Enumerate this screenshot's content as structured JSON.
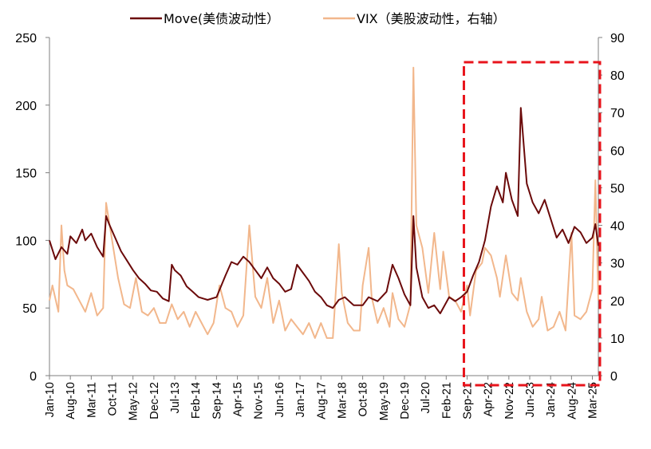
{
  "chart_data": {
    "type": "line",
    "legend_position": "top",
    "grid": false,
    "colors": {
      "move": "#6b0a0a",
      "vix": "#f2b78c",
      "highlight": "#e8141c"
    },
    "x_labels": [
      "Jan-10",
      "Aug-10",
      "Mar-11",
      "Oct-11",
      "May-12",
      "Dec-12",
      "Jul-13",
      "Feb-14",
      "Sep-14",
      "Apr-15",
      "Nov-15",
      "Jun-16",
      "Jan-17",
      "Aug-17",
      "Mar-18",
      "Oct-18",
      "May-19",
      "Dec-19",
      "Jul-20",
      "Feb-21",
      "Sep-21",
      "Apr-22",
      "Nov-22",
      "Jun-23",
      "Jan-24",
      "Aug-24",
      "Mar-25"
    ],
    "x_range": [
      "2010-01",
      "2025-05"
    ],
    "y_left": {
      "ylim": [
        0,
        250
      ],
      "ticks": [
        "0",
        "50",
        "100",
        "150",
        "200",
        "250"
      ]
    },
    "y_right": {
      "ylim": [
        0,
        90
      ],
      "ticks": [
        "0",
        "10",
        "20",
        "30",
        "40",
        "50",
        "60",
        "70",
        "80",
        "90"
      ]
    },
    "highlight_box": {
      "from": "2021-09",
      "to": "2025-05"
    },
    "series": [
      {
        "name": "Move(美债波动性）",
        "axis": "left",
        "points": [
          [
            "2010-01",
            100
          ],
          [
            "2010-03",
            86
          ],
          [
            "2010-05",
            95
          ],
          [
            "2010-07",
            90
          ],
          [
            "2010-08",
            103
          ],
          [
            "2010-10",
            98
          ],
          [
            "2010-12",
            108
          ],
          [
            "2011-01",
            100
          ],
          [
            "2011-03",
            105
          ],
          [
            "2011-05",
            95
          ],
          [
            "2011-07",
            88
          ],
          [
            "2011-08",
            118
          ],
          [
            "2011-09",
            112
          ],
          [
            "2011-11",
            102
          ],
          [
            "2012-01",
            92
          ],
          [
            "2012-03",
            85
          ],
          [
            "2012-05",
            78
          ],
          [
            "2012-07",
            72
          ],
          [
            "2012-09",
            68
          ],
          [
            "2012-11",
            63
          ],
          [
            "2013-01",
            62
          ],
          [
            "2013-03",
            57
          ],
          [
            "2013-05",
            55
          ],
          [
            "2013-06",
            82
          ],
          [
            "2013-07",
            78
          ],
          [
            "2013-09",
            74
          ],
          [
            "2013-11",
            66
          ],
          [
            "2014-01",
            62
          ],
          [
            "2014-03",
            58
          ],
          [
            "2014-06",
            56
          ],
          [
            "2014-09",
            58
          ],
          [
            "2014-12",
            74
          ],
          [
            "2015-02",
            84
          ],
          [
            "2015-04",
            82
          ],
          [
            "2015-06",
            88
          ],
          [
            "2015-08",
            84
          ],
          [
            "2015-10",
            78
          ],
          [
            "2015-12",
            72
          ],
          [
            "2016-02",
            80
          ],
          [
            "2016-04",
            72
          ],
          [
            "2016-06",
            68
          ],
          [
            "2016-08",
            62
          ],
          [
            "2016-10",
            64
          ],
          [
            "2016-12",
            82
          ],
          [
            "2017-02",
            76
          ],
          [
            "2017-04",
            70
          ],
          [
            "2017-06",
            62
          ],
          [
            "2017-08",
            58
          ],
          [
            "2017-10",
            52
          ],
          [
            "2017-12",
            50
          ],
          [
            "2018-02",
            56
          ],
          [
            "2018-04",
            58
          ],
          [
            "2018-07",
            52
          ],
          [
            "2018-10",
            52
          ],
          [
            "2018-12",
            58
          ],
          [
            "2019-03",
            55
          ],
          [
            "2019-06",
            62
          ],
          [
            "2019-08",
            82
          ],
          [
            "2019-10",
            72
          ],
          [
            "2019-12",
            60
          ],
          [
            "2020-02",
            52
          ],
          [
            "2020-03",
            118
          ],
          [
            "2020-04",
            80
          ],
          [
            "2020-06",
            58
          ],
          [
            "2020-08",
            50
          ],
          [
            "2020-10",
            52
          ],
          [
            "2020-12",
            46
          ],
          [
            "2021-03",
            58
          ],
          [
            "2021-05",
            55
          ],
          [
            "2021-07",
            58
          ],
          [
            "2021-09",
            62
          ],
          [
            "2021-11",
            74
          ],
          [
            "2022-01",
            84
          ],
          [
            "2022-03",
            100
          ],
          [
            "2022-05",
            125
          ],
          [
            "2022-07",
            140
          ],
          [
            "2022-09",
            128
          ],
          [
            "2022-10",
            150
          ],
          [
            "2022-12",
            130
          ],
          [
            "2023-02",
            118
          ],
          [
            "2023-03",
            198
          ],
          [
            "2023-05",
            142
          ],
          [
            "2023-07",
            128
          ],
          [
            "2023-09",
            120
          ],
          [
            "2023-11",
            130
          ],
          [
            "2024-01",
            116
          ],
          [
            "2024-03",
            102
          ],
          [
            "2024-05",
            108
          ],
          [
            "2024-07",
            98
          ],
          [
            "2024-09",
            110
          ],
          [
            "2024-11",
            106
          ],
          [
            "2025-01",
            98
          ],
          [
            "2025-03",
            102
          ],
          [
            "2025-04",
            112
          ],
          [
            "2025-05",
            96
          ]
        ]
      },
      {
        "name": "VIX（美股波动性，右轴）",
        "axis": "right",
        "points": [
          [
            "2010-01",
            20
          ],
          [
            "2010-02",
            24
          ],
          [
            "2010-04",
            17
          ],
          [
            "2010-05",
            40
          ],
          [
            "2010-06",
            28
          ],
          [
            "2010-07",
            24
          ],
          [
            "2010-09",
            23
          ],
          [
            "2010-11",
            20
          ],
          [
            "2011-01",
            17
          ],
          [
            "2011-03",
            22
          ],
          [
            "2011-05",
            16
          ],
          [
            "2011-07",
            18
          ],
          [
            "2011-08",
            46
          ],
          [
            "2011-10",
            36
          ],
          [
            "2011-12",
            26
          ],
          [
            "2012-02",
            19
          ],
          [
            "2012-04",
            18
          ],
          [
            "2012-06",
            26
          ],
          [
            "2012-08",
            17
          ],
          [
            "2012-10",
            16
          ],
          [
            "2012-12",
            18
          ],
          [
            "2013-02",
            14
          ],
          [
            "2013-04",
            14
          ],
          [
            "2013-06",
            19
          ],
          [
            "2013-08",
            15
          ],
          [
            "2013-10",
            17
          ],
          [
            "2013-12",
            13
          ],
          [
            "2014-02",
            17
          ],
          [
            "2014-04",
            14
          ],
          [
            "2014-06",
            11
          ],
          [
            "2014-08",
            14
          ],
          [
            "2014-10",
            24
          ],
          [
            "2014-12",
            18
          ],
          [
            "2015-02",
            17
          ],
          [
            "2015-04",
            13
          ],
          [
            "2015-06",
            16
          ],
          [
            "2015-08",
            40
          ],
          [
            "2015-10",
            21
          ],
          [
            "2015-12",
            18
          ],
          [
            "2016-02",
            26
          ],
          [
            "2016-04",
            14
          ],
          [
            "2016-06",
            20
          ],
          [
            "2016-08",
            12
          ],
          [
            "2016-10",
            15
          ],
          [
            "2016-12",
            13
          ],
          [
            "2017-02",
            11
          ],
          [
            "2017-04",
            14
          ],
          [
            "2017-06",
            10
          ],
          [
            "2017-08",
            14
          ],
          [
            "2017-10",
            10
          ],
          [
            "2017-12",
            10
          ],
          [
            "2018-02",
            35
          ],
          [
            "2018-03",
            22
          ],
          [
            "2018-05",
            14
          ],
          [
            "2018-07",
            12
          ],
          [
            "2018-09",
            12
          ],
          [
            "2018-10",
            24
          ],
          [
            "2018-12",
            34
          ],
          [
            "2019-01",
            21
          ],
          [
            "2019-03",
            14
          ],
          [
            "2019-05",
            18
          ],
          [
            "2019-07",
            13
          ],
          [
            "2019-08",
            22
          ],
          [
            "2019-10",
            15
          ],
          [
            "2019-12",
            13
          ],
          [
            "2020-02",
            19
          ],
          [
            "2020-03",
            82
          ],
          [
            "2020-04",
            40
          ],
          [
            "2020-06",
            34
          ],
          [
            "2020-08",
            22
          ],
          [
            "2020-10",
            38
          ],
          [
            "2020-12",
            23
          ],
          [
            "2021-01",
            33
          ],
          [
            "2021-03",
            21
          ],
          [
            "2021-05",
            20
          ],
          [
            "2021-07",
            17
          ],
          [
            "2021-09",
            24
          ],
          [
            "2021-10",
            16
          ],
          [
            "2021-12",
            28
          ],
          [
            "2022-02",
            30
          ],
          [
            "2022-03",
            34
          ],
          [
            "2022-05",
            32
          ],
          [
            "2022-07",
            26
          ],
          [
            "2022-08",
            21
          ],
          [
            "2022-10",
            32
          ],
          [
            "2022-12",
            22
          ],
          [
            "2023-02",
            20
          ],
          [
            "2023-03",
            26
          ],
          [
            "2023-05",
            17
          ],
          [
            "2023-07",
            13
          ],
          [
            "2023-09",
            15
          ],
          [
            "2023-10",
            21
          ],
          [
            "2023-12",
            12
          ],
          [
            "2024-02",
            13
          ],
          [
            "2024-04",
            17
          ],
          [
            "2024-06",
            12
          ],
          [
            "2024-08",
            38
          ],
          [
            "2024-09",
            16
          ],
          [
            "2024-11",
            15
          ],
          [
            "2025-01",
            17
          ],
          [
            "2025-03",
            23
          ],
          [
            "2025-04",
            52
          ],
          [
            "2025-05",
            20
          ]
        ]
      }
    ]
  }
}
